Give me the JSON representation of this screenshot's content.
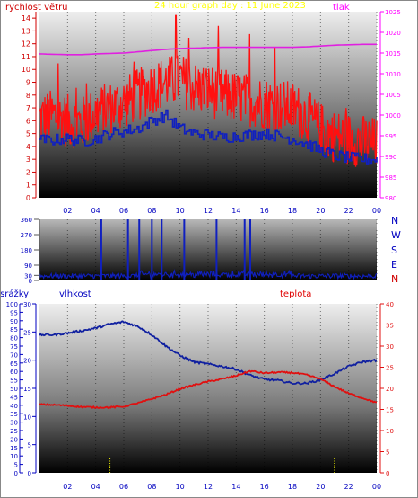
{
  "header": {
    "left_label": "rychlost větru",
    "title": "24 hour graph day : 11 June 2023",
    "right_label": "tlak"
  },
  "bottom_labels": {
    "rain": "srážky",
    "humidity": "vlhkost",
    "temperature": "teplota"
  },
  "colors": {
    "wind_speed": "#ff1010",
    "wind_avg": "#1020c0",
    "pressure": "#e020e0",
    "wind_dir": "#1020c0",
    "humidity": "#1020a0",
    "temperature": "#e01010",
    "rain": "#e0e000",
    "title": "#ffff00",
    "left_axis": "#d00000",
    "right_axis": "#ff00ff",
    "humidity_axis": "#0000c0"
  },
  "chart_data": [
    {
      "id": "wind",
      "type": "line",
      "x_ticks": [
        "02",
        "04",
        "06",
        "08",
        "10",
        "12",
        "14",
        "16",
        "18",
        "20",
        "22",
        "00"
      ],
      "ylabel": "rychlost větru",
      "ylim": [
        0,
        14.5
      ],
      "y_ticks": [
        "0",
        "1",
        "2",
        "3",
        "4",
        "5",
        "6",
        "7",
        "8",
        "9",
        "10",
        "11",
        "12",
        "13",
        "14"
      ],
      "y2label": "tlak",
      "y2lim": [
        980,
        1025
      ],
      "y2_ticks": [
        "980",
        "985",
        "990",
        "995",
        "1000",
        "1005",
        "1010",
        "1015",
        "1020",
        "1025"
      ],
      "hours": [
        0,
        1,
        2,
        3,
        4,
        5,
        6,
        7,
        8,
        9,
        10,
        11,
        12,
        13,
        14,
        15,
        16,
        17,
        18,
        19,
        20,
        21,
        22,
        23,
        24
      ],
      "series": [
        {
          "key": "gust",
          "values": [
            6.2,
            6.4,
            6.0,
            5.8,
            6.6,
            7.0,
            7.4,
            8.0,
            8.6,
            9.0,
            9.2,
            8.6,
            8.4,
            8.0,
            7.8,
            7.6,
            7.4,
            7.2,
            7.0,
            6.4,
            5.4,
            4.8,
            4.6,
            4.4,
            4.2
          ]
        },
        {
          "key": "avg",
          "values": [
            4.5,
            4.5,
            4.6,
            4.4,
            4.6,
            5.0,
            5.2,
            5.4,
            6.0,
            6.4,
            5.4,
            5.0,
            4.9,
            4.7,
            4.8,
            4.9,
            5.0,
            4.8,
            4.6,
            4.2,
            3.7,
            3.3,
            3.1,
            3.0,
            3.0
          ]
        },
        {
          "key": "pressure",
          "values": [
            1014.8,
            1014.7,
            1014.6,
            1014.6,
            1014.8,
            1014.9,
            1015.0,
            1015.3,
            1015.6,
            1015.9,
            1016.1,
            1016.2,
            1016.3,
            1016.4,
            1016.4,
            1016.4,
            1016.4,
            1016.4,
            1016.4,
            1016.5,
            1016.7,
            1016.9,
            1017.0,
            1017.1,
            1017.1
          ]
        }
      ]
    },
    {
      "id": "direction",
      "type": "line",
      "ylim": [
        0,
        360
      ],
      "y_ticks": [
        "0",
        "30",
        "90",
        "180",
        "270",
        "360"
      ],
      "compass": [
        "N",
        "W",
        "S",
        "E",
        "N"
      ],
      "spike_hours": [
        4.4,
        6.3,
        7.1,
        8.0,
        8.7,
        10.3,
        12.6,
        14.6,
        15.0
      ],
      "base_value": 20
    },
    {
      "id": "climate",
      "type": "line",
      "x_ticks": [
        "02",
        "04",
        "06",
        "08",
        "10",
        "12",
        "14",
        "16",
        "18",
        "20",
        "22",
        "00"
      ],
      "rain_label": "srážky",
      "rain_ylim": [
        0,
        100
      ],
      "rain_ticks": [
        "0",
        "5",
        "10",
        "15",
        "20",
        "25",
        "30",
        "35",
        "40",
        "45",
        "50",
        "55",
        "60",
        "65",
        "70",
        "75",
        "80",
        "85",
        "90",
        "95",
        "100"
      ],
      "humidity_label": "vlhkost",
      "humidity_ylim": [
        0,
        30
      ],
      "humidity_ticks": [
        "0",
        "5",
        "10",
        "15",
        "20",
        "25",
        "30"
      ],
      "temperature_label": "teplota",
      "temperature_ylim": [
        0,
        40
      ],
      "temperature_ticks": [
        "0",
        "5",
        "10",
        "15",
        "20",
        "25",
        "30",
        "35",
        "40"
      ],
      "hours": [
        0,
        1,
        2,
        3,
        4,
        5,
        6,
        7,
        8,
        9,
        10,
        11,
        12,
        13,
        14,
        15,
        16,
        17,
        18,
        19,
        20,
        21,
        22,
        23,
        24
      ],
      "series": [
        {
          "key": "humidity",
          "values": [
            24.5,
            24.5,
            24.8,
            25.2,
            25.7,
            26.4,
            26.8,
            26.0,
            24.5,
            22.5,
            20.8,
            19.7,
            19.3,
            18.9,
            18.4,
            17.3,
            16.6,
            16.4,
            15.9,
            15.9,
            16.5,
            17.6,
            18.9,
            19.7,
            20.0
          ]
        },
        {
          "key": "temperature",
          "values": [
            16.2,
            16.1,
            15.9,
            15.6,
            15.5,
            15.5,
            15.7,
            16.5,
            17.5,
            18.5,
            19.9,
            20.8,
            21.6,
            22.2,
            23.0,
            24.1,
            23.6,
            23.8,
            23.7,
            23.2,
            22.2,
            20.4,
            18.8,
            17.7,
            16.6
          ]
        },
        {
          "key": "rain",
          "marks": [
            5.0,
            21.0
          ]
        }
      ]
    }
  ]
}
